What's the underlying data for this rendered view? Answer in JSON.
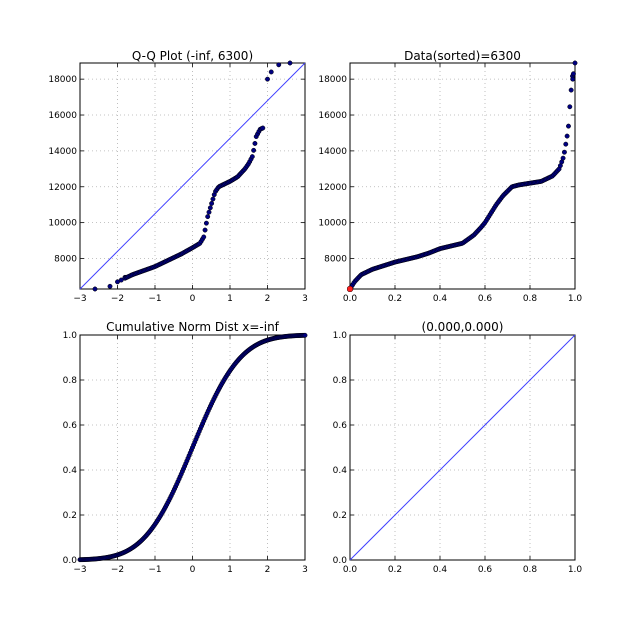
{
  "figure": {
    "marker_color": "#000080",
    "line_color": "#4040ff",
    "highlight_color": "#ff2020"
  },
  "chart_data": [
    {
      "id": "qq",
      "type": "scatter",
      "title": "Q-Q Plot (-inf, 6300)",
      "xlim": [
        -3,
        3
      ],
      "ylim": [
        6300,
        18900
      ],
      "xticks": [
        -3,
        -2,
        -1,
        0,
        1,
        2,
        3
      ],
      "xtick_labels": [
        "−3",
        "−2",
        "−1",
        "0",
        "1",
        "2",
        "3"
      ],
      "yticks": [
        8000,
        10000,
        12000,
        14000,
        16000,
        18000
      ],
      "ytick_labels": [
        "8000",
        "10000",
        "12000",
        "14000",
        "16000",
        "18000"
      ],
      "grid": true,
      "reference_line": {
        "x": [
          -3,
          3
        ],
        "y": [
          6300,
          18900
        ]
      },
      "quantile_curve": {
        "x": [
          -2.6,
          -2.2,
          -2.0,
          -1.6,
          -1.2,
          -1.0,
          -0.6,
          -0.3,
          0.0,
          0.2,
          0.3,
          0.4,
          0.5,
          0.6,
          0.7,
          0.8,
          1.0,
          1.2,
          1.4,
          1.5,
          1.6,
          1.7,
          1.8,
          1.9,
          2.0,
          2.1,
          2.3,
          2.6
        ],
        "y": [
          6300,
          6450,
          6700,
          7100,
          7400,
          7550,
          7950,
          8250,
          8600,
          8850,
          9200,
          10300,
          11000,
          11700,
          12000,
          12100,
          12300,
          12550,
          13000,
          13300,
          13700,
          14800,
          15200,
          15300,
          18000,
          18400,
          18800,
          18900
        ]
      }
    },
    {
      "id": "sorted",
      "type": "scatter",
      "title": "Data(sorted)=6300",
      "xlim": [
        0,
        1
      ],
      "ylim": [
        6300,
        18900
      ],
      "xticks": [
        0,
        0.2,
        0.4,
        0.6,
        0.8,
        1.0
      ],
      "xtick_labels": [
        "0.0",
        "0.2",
        "0.4",
        "0.6",
        "0.8",
        "1.0"
      ],
      "yticks": [
        8000,
        10000,
        12000,
        14000,
        16000,
        18000
      ],
      "ytick_labels": [
        "8000",
        "10000",
        "12000",
        "14000",
        "16000",
        "18000"
      ],
      "grid": true,
      "highlight_point": {
        "x": 0.0,
        "y": 6300
      },
      "sorted_curve": {
        "x": [
          0.0,
          0.02,
          0.05,
          0.1,
          0.15,
          0.2,
          0.25,
          0.3,
          0.35,
          0.4,
          0.45,
          0.5,
          0.55,
          0.58,
          0.6,
          0.62,
          0.65,
          0.68,
          0.72,
          0.75,
          0.8,
          0.85,
          0.9,
          0.93,
          0.95,
          0.97,
          0.98,
          0.99,
          1.0
        ],
        "y": [
          6300,
          6700,
          7100,
          7400,
          7600,
          7800,
          7950,
          8100,
          8300,
          8550,
          8700,
          8850,
          9300,
          9700,
          10000,
          10400,
          11000,
          11500,
          12000,
          12100,
          12200,
          12300,
          12600,
          13000,
          13700,
          15200,
          17000,
          18300,
          18900
        ]
      }
    },
    {
      "id": "cdf",
      "type": "scatter",
      "title": "Cumulative Norm Dist x=-inf",
      "xlim": [
        -3,
        3
      ],
      "ylim": [
        0,
        1
      ],
      "xticks": [
        -3,
        -2,
        -1,
        0,
        1,
        2,
        3
      ],
      "xtick_labels": [
        "−3",
        "−2",
        "−1",
        "0",
        "1",
        "2",
        "3"
      ],
      "yticks": [
        0,
        0.2,
        0.4,
        0.6,
        0.8,
        1.0
      ],
      "ytick_labels": [
        "0.0",
        "0.2",
        "0.4",
        "0.6",
        "0.8",
        "1.0"
      ],
      "grid": true,
      "curve": "standard normal CDF"
    },
    {
      "id": "pp",
      "type": "line",
      "title": "(0.000,0.000)",
      "xlim": [
        0,
        1
      ],
      "ylim": [
        0,
        1
      ],
      "xticks": [
        0,
        0.2,
        0.4,
        0.6,
        0.8,
        1.0
      ],
      "xtick_labels": [
        "0.0",
        "0.2",
        "0.4",
        "0.6",
        "0.8",
        "1.0"
      ],
      "yticks": [
        0,
        0.2,
        0.4,
        0.6,
        0.8,
        1.0
      ],
      "ytick_labels": [
        "0.0",
        "0.2",
        "0.4",
        "0.6",
        "0.8",
        "1.0"
      ],
      "grid": true,
      "reference_line": {
        "x": [
          0,
          1
        ],
        "y": [
          0,
          1
        ]
      }
    }
  ]
}
